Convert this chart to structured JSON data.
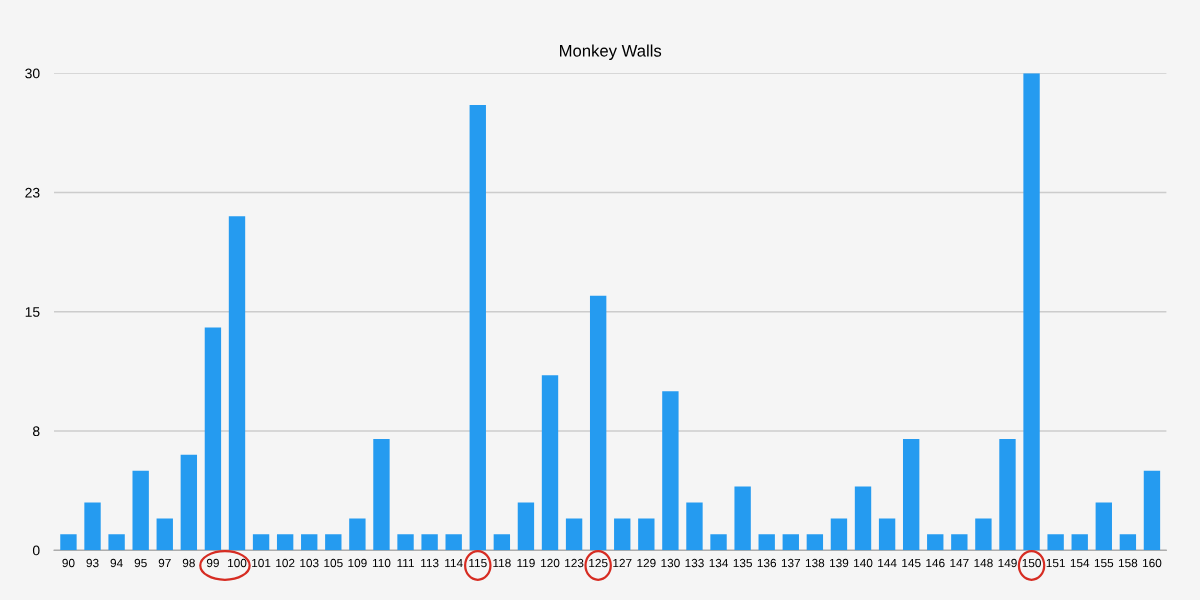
{
  "chart_data": {
    "type": "bar",
    "title": "Monkey Walls",
    "categories": [
      "90",
      "93",
      "94",
      "95",
      "97",
      "98",
      "99",
      "100",
      "101",
      "102",
      "103",
      "105",
      "109",
      "110",
      "111",
      "113",
      "114",
      "115",
      "118",
      "119",
      "120",
      "123",
      "125",
      "127",
      "129",
      "130",
      "133",
      "134",
      "135",
      "136",
      "137",
      "138",
      "139",
      "140",
      "144",
      "145",
      "146",
      "147",
      "148",
      "149",
      "150",
      "151",
      "154",
      "155",
      "158",
      "160"
    ],
    "values": [
      1,
      3,
      1,
      5,
      2,
      6,
      14,
      21,
      1,
      1,
      1,
      1,
      2,
      7,
      1,
      1,
      1,
      28,
      1,
      3,
      11,
      2,
      16,
      2,
      2,
      10,
      3,
      1,
      4,
      1,
      1,
      1,
      2,
      4,
      2,
      7,
      1,
      1,
      2,
      7,
      30,
      1,
      1,
      3,
      1,
      5
    ],
    "color": "#259bf0",
    "ylim": [
      0,
      30
    ],
    "yticks": [
      0,
      {
        "value": 7.5,
        "label": "8"
      },
      15,
      {
        "value": 22.5,
        "label": "23"
      },
      30
    ],
    "grid": "y"
  }
}
